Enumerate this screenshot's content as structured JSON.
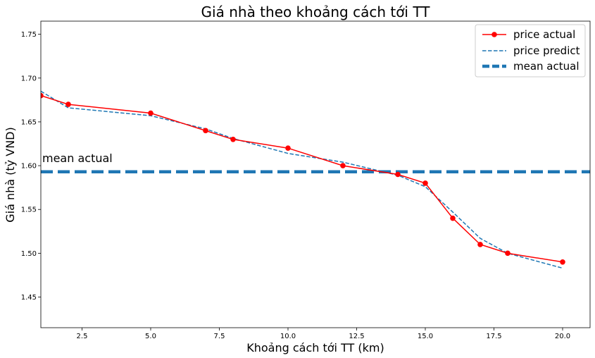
{
  "chart_data": {
    "type": "line",
    "title": "Giá nhà theo khoảng cách tới TT",
    "xlabel": "Khoảng cách tới TT (km)",
    "ylabel": "Giá nhà (tỷ VND)",
    "xlim": [
      1,
      21
    ],
    "ylim": [
      1.415,
      1.765
    ],
    "xticks": [
      2.5,
      5.0,
      7.5,
      10.0,
      12.5,
      15.0,
      17.5,
      20.0
    ],
    "xtick_labels": [
      "2.5",
      "5.0",
      "7.5",
      "10.0",
      "12.5",
      "15.0",
      "17.5",
      "20.0"
    ],
    "yticks": [
      1.45,
      1.5,
      1.55,
      1.6,
      1.65,
      1.7,
      1.75
    ],
    "ytick_labels": [
      "1.45",
      "1.50",
      "1.55",
      "1.60",
      "1.65",
      "1.70",
      "1.75"
    ],
    "grid": false,
    "legend_position": "top-right",
    "x": [
      1,
      2,
      5,
      7,
      8,
      10,
      12,
      14,
      15,
      16,
      17,
      18,
      20
    ],
    "series": [
      {
        "name": "price actual",
        "color": "#ff0000",
        "style": "solid-with-markers",
        "values": [
          1.68,
          1.67,
          1.66,
          1.64,
          1.63,
          1.62,
          1.6,
          1.59,
          1.58,
          1.54,
          1.51,
          1.5,
          1.49
        ]
      },
      {
        "name": "price predict",
        "color": "#1f77b4",
        "style": "dashed",
        "values": [
          1.685,
          1.666,
          1.657,
          1.642,
          1.631,
          1.614,
          1.604,
          1.589,
          1.576,
          1.547,
          1.517,
          1.5,
          1.483
        ]
      },
      {
        "name": "mean actual",
        "color": "#1f77b4",
        "style": "thick-dashed-horizontal",
        "value": 1.593
      }
    ],
    "annotations": [
      {
        "text": "mean actual",
        "x": 1.0,
        "y": 1.608
      }
    ]
  }
}
